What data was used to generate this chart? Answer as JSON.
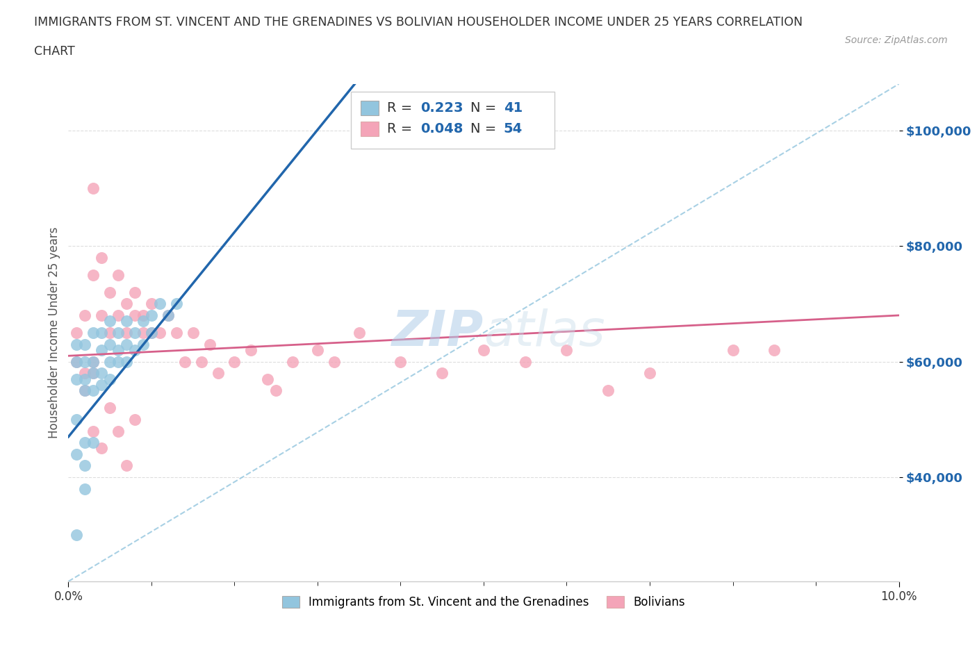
{
  "title_line1": "IMMIGRANTS FROM ST. VINCENT AND THE GRENADINES VS BOLIVIAN HOUSEHOLDER INCOME UNDER 25 YEARS CORRELATION",
  "title_line2": "CHART",
  "source": "Source: ZipAtlas.com",
  "ylabel": "Householder Income Under 25 years",
  "xlim": [
    0.0,
    0.1
  ],
  "ylim": [
    22000,
    108000
  ],
  "yticks": [
    40000,
    60000,
    80000,
    100000
  ],
  "ytick_labels": [
    "$40,000",
    "$60,000",
    "$80,000",
    "$100,000"
  ],
  "xtick_positions": [
    0.0,
    0.1
  ],
  "xtick_labels": [
    "0.0%",
    "10.0%"
  ],
  "color_blue": "#92c5de",
  "color_pink": "#f4a4b8",
  "color_blue_line": "#2166ac",
  "color_pink_line": "#d6608a",
  "color_dashed": "#92c5de",
  "watermark_text": "ZIPatlas",
  "blue_x": [
    0.001,
    0.001,
    0.001,
    0.001,
    0.002,
    0.002,
    0.002,
    0.002,
    0.002,
    0.003,
    0.003,
    0.003,
    0.003,
    0.004,
    0.004,
    0.004,
    0.004,
    0.005,
    0.005,
    0.005,
    0.005,
    0.006,
    0.006,
    0.006,
    0.007,
    0.007,
    0.007,
    0.008,
    0.008,
    0.009,
    0.009,
    0.01,
    0.01,
    0.011,
    0.012,
    0.013,
    0.001,
    0.002,
    0.003,
    0.002,
    0.001
  ],
  "blue_y": [
    57000,
    60000,
    63000,
    50000,
    57000,
    60000,
    63000,
    42000,
    38000,
    58000,
    60000,
    65000,
    55000,
    58000,
    62000,
    65000,
    56000,
    60000,
    63000,
    67000,
    57000,
    62000,
    65000,
    60000,
    63000,
    67000,
    60000,
    65000,
    62000,
    67000,
    63000,
    68000,
    65000,
    70000,
    68000,
    70000,
    44000,
    46000,
    46000,
    55000,
    30000
  ],
  "pink_x": [
    0.001,
    0.001,
    0.002,
    0.002,
    0.003,
    0.003,
    0.003,
    0.004,
    0.004,
    0.005,
    0.005,
    0.006,
    0.006,
    0.007,
    0.007,
    0.008,
    0.008,
    0.009,
    0.009,
    0.01,
    0.01,
    0.011,
    0.012,
    0.013,
    0.014,
    0.015,
    0.016,
    0.017,
    0.018,
    0.02,
    0.022,
    0.024,
    0.025,
    0.027,
    0.03,
    0.032,
    0.035,
    0.04,
    0.045,
    0.05,
    0.055,
    0.06,
    0.065,
    0.07,
    0.08,
    0.085,
    0.003,
    0.004,
    0.005,
    0.006,
    0.007,
    0.008,
    0.002,
    0.003
  ],
  "pink_y": [
    60000,
    65000,
    68000,
    58000,
    90000,
    75000,
    60000,
    68000,
    78000,
    72000,
    65000,
    68000,
    75000,
    70000,
    65000,
    68000,
    72000,
    65000,
    68000,
    65000,
    70000,
    65000,
    68000,
    65000,
    60000,
    65000,
    60000,
    63000,
    58000,
    60000,
    62000,
    57000,
    55000,
    60000,
    62000,
    60000,
    65000,
    60000,
    58000,
    62000,
    60000,
    62000,
    55000,
    58000,
    62000,
    62000,
    48000,
    45000,
    52000,
    48000,
    42000,
    50000,
    55000,
    58000
  ]
}
